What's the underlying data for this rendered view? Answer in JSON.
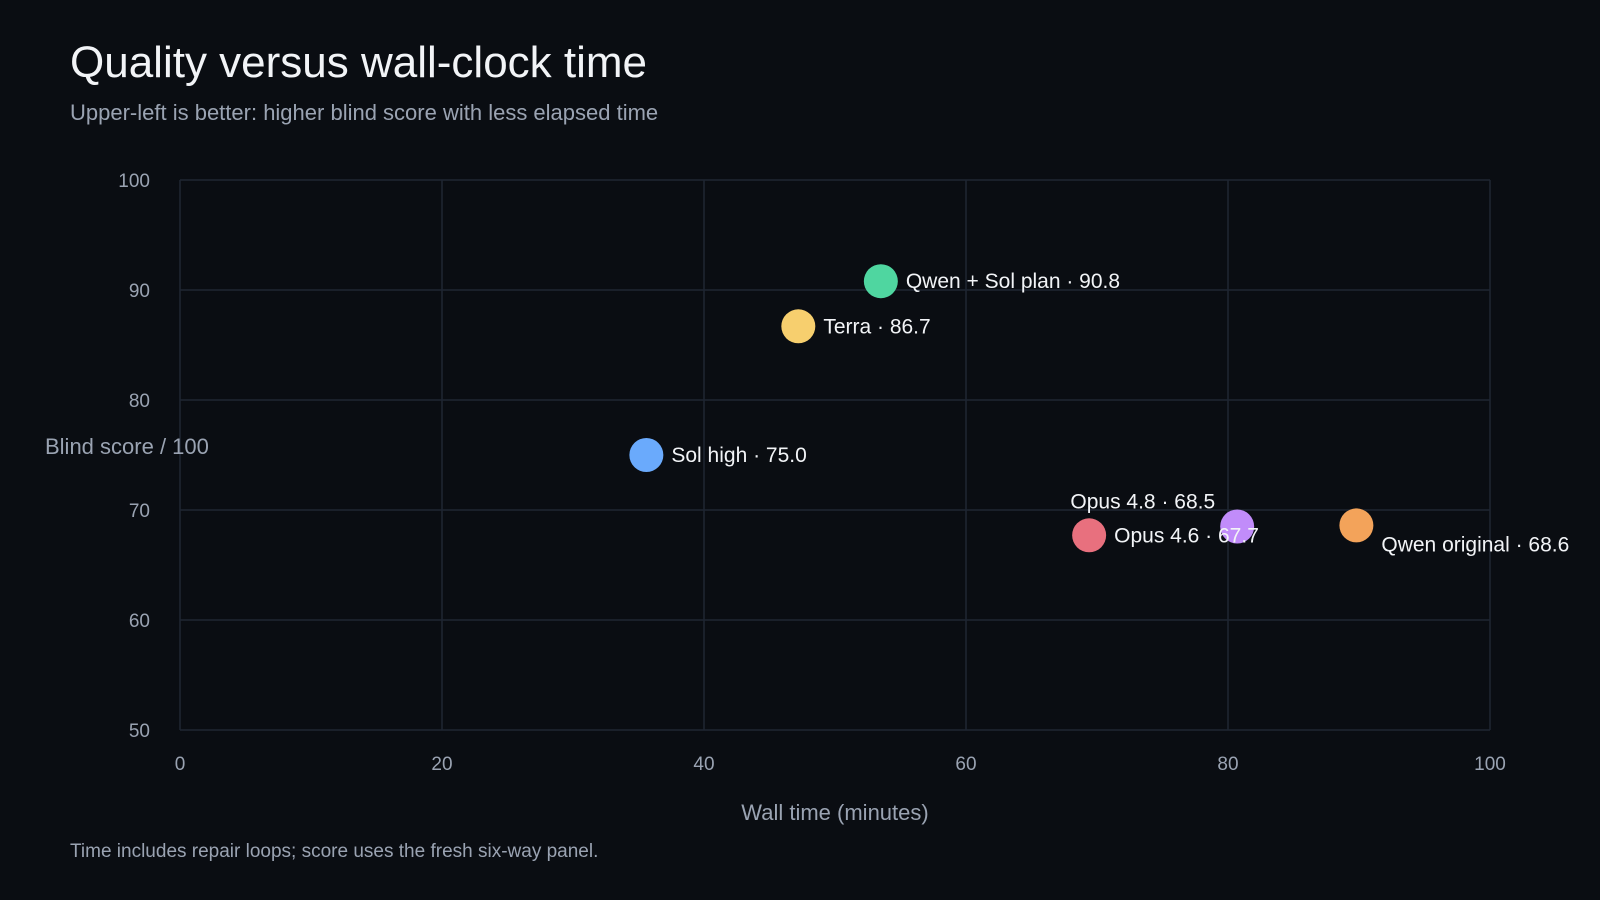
{
  "header": {
    "title": "Quality versus wall-clock time",
    "subtitle": "Upper-left is better: higher blind score with less elapsed time"
  },
  "footer": {
    "note": "Time includes repair loops; score uses the fresh six-way panel."
  },
  "chart_data": {
    "type": "scatter",
    "xlabel": "Wall time (minutes)",
    "ylabel": "Blind score / 100",
    "xlim": [
      0,
      100
    ],
    "ylim": [
      50,
      100
    ],
    "xticks": [
      0,
      20,
      40,
      60,
      80,
      100
    ],
    "yticks": [
      50,
      60,
      70,
      80,
      90,
      100
    ],
    "grid": true,
    "points": [
      {
        "label": "Qwen + Sol plan · 90.8",
        "x": 53.5,
        "y": 90.8,
        "color": "#4fd6a0",
        "label_position": "right"
      },
      {
        "label": "Terra · 86.7",
        "x": 47.2,
        "y": 86.7,
        "color": "#f7cf6e",
        "label_position": "right"
      },
      {
        "label": "Sol high · 75.0",
        "x": 35.6,
        "y": 75.0,
        "color": "#6aaafc",
        "label_position": "right"
      },
      {
        "label": "Opus 4.8 · 68.5",
        "x": 80.7,
        "y": 68.5,
        "color": "#c18cfa",
        "label_position": "above-left"
      },
      {
        "label": "Opus 4.6 · 67.7",
        "x": 69.4,
        "y": 67.7,
        "color": "#e8707e",
        "label_position": "right"
      },
      {
        "label": "Qwen original · 68.6",
        "x": 89.8,
        "y": 68.6,
        "color": "#f3a35a",
        "label_position": "below-right"
      }
    ]
  }
}
